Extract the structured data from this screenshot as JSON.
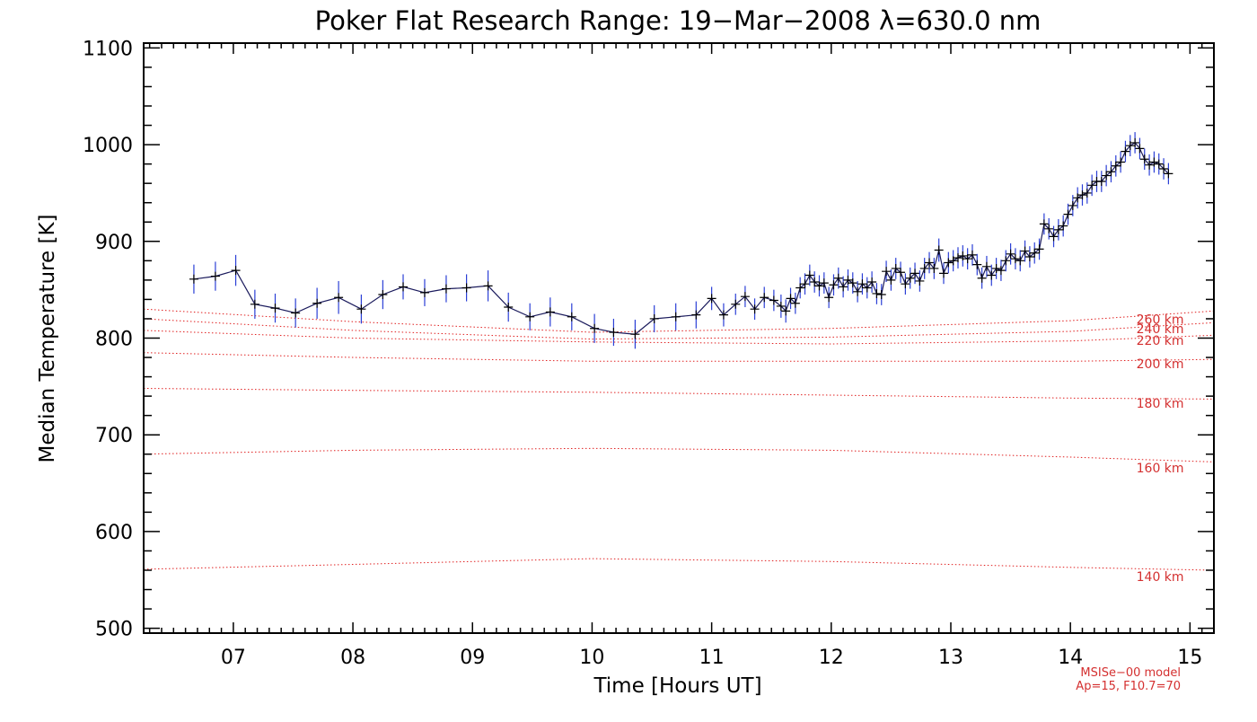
{
  "chart_data": {
    "type": "line",
    "title": "Poker Flat Research Range: 19−Mar−2008 λ=630.0 nm",
    "xlabel": "Time [Hours UT]",
    "ylabel": "Median Temperature [K]",
    "xlim": [
      6.25,
      15.2
    ],
    "ylim": [
      495,
      1105
    ],
    "x_ticks": [
      7,
      8,
      9,
      10,
      11,
      12,
      13,
      14,
      15
    ],
    "x_tick_labels": [
      "07",
      "08",
      "09",
      "10",
      "11",
      "12",
      "13",
      "14",
      "15"
    ],
    "y_ticks": [
      500,
      600,
      700,
      800,
      900,
      1000,
      1100
    ],
    "y_tick_labels": [
      "500",
      "600",
      "700",
      "800",
      "900",
      "1000",
      "1100"
    ],
    "grid": false,
    "colors": {
      "data": "#1a1a5c",
      "error_bars": "#2b3fd6",
      "model": "#e02020",
      "model_text": "#d43030"
    },
    "measurements": [
      {
        "x": 6.67,
        "y": 861,
        "err": 15
      },
      {
        "x": 6.85,
        "y": 864,
        "err": 15
      },
      {
        "x": 7.02,
        "y": 870,
        "err": 16
      },
      {
        "x": 7.18,
        "y": 835,
        "err": 15
      },
      {
        "x": 7.35,
        "y": 831,
        "err": 15
      },
      {
        "x": 7.52,
        "y": 826,
        "err": 15
      },
      {
        "x": 7.7,
        "y": 836,
        "err": 16
      },
      {
        "x": 7.88,
        "y": 842,
        "err": 17
      },
      {
        "x": 8.07,
        "y": 830,
        "err": 15
      },
      {
        "x": 8.25,
        "y": 845,
        "err": 15
      },
      {
        "x": 8.42,
        "y": 853,
        "err": 13
      },
      {
        "x": 8.6,
        "y": 847,
        "err": 14
      },
      {
        "x": 8.78,
        "y": 851,
        "err": 14
      },
      {
        "x": 8.95,
        "y": 852,
        "err": 14
      },
      {
        "x": 9.13,
        "y": 854,
        "err": 16
      },
      {
        "x": 9.3,
        "y": 832,
        "err": 15
      },
      {
        "x": 9.48,
        "y": 822,
        "err": 14
      },
      {
        "x": 9.65,
        "y": 827,
        "err": 15
      },
      {
        "x": 9.83,
        "y": 822,
        "err": 14
      },
      {
        "x": 10.02,
        "y": 810,
        "err": 15
      },
      {
        "x": 10.18,
        "y": 806,
        "err": 14
      },
      {
        "x": 10.36,
        "y": 804,
        "err": 15
      },
      {
        "x": 10.52,
        "y": 820,
        "err": 14
      },
      {
        "x": 10.7,
        "y": 822,
        "err": 14
      },
      {
        "x": 10.87,
        "y": 824,
        "err": 14
      },
      {
        "x": 11.0,
        "y": 841,
        "err": 12
      },
      {
        "x": 11.1,
        "y": 824,
        "err": 12
      },
      {
        "x": 11.2,
        "y": 835,
        "err": 11
      },
      {
        "x": 11.28,
        "y": 843,
        "err": 11
      },
      {
        "x": 11.36,
        "y": 830,
        "err": 11
      },
      {
        "x": 11.44,
        "y": 842,
        "err": 11
      },
      {
        "x": 11.52,
        "y": 839,
        "err": 11
      },
      {
        "x": 11.58,
        "y": 833,
        "err": 12
      },
      {
        "x": 11.62,
        "y": 828,
        "err": 12
      },
      {
        "x": 11.66,
        "y": 841,
        "err": 11
      },
      {
        "x": 11.7,
        "y": 836,
        "err": 11
      },
      {
        "x": 11.74,
        "y": 852,
        "err": 11
      },
      {
        "x": 11.78,
        "y": 856,
        "err": 11
      },
      {
        "x": 11.82,
        "y": 865,
        "err": 11
      },
      {
        "x": 11.86,
        "y": 858,
        "err": 11
      },
      {
        "x": 11.9,
        "y": 854,
        "err": 11
      },
      {
        "x": 11.94,
        "y": 857,
        "err": 11
      },
      {
        "x": 11.98,
        "y": 842,
        "err": 11
      },
      {
        "x": 12.02,
        "y": 855,
        "err": 11
      },
      {
        "x": 12.06,
        "y": 862,
        "err": 11
      },
      {
        "x": 12.1,
        "y": 853,
        "err": 11
      },
      {
        "x": 12.14,
        "y": 860,
        "err": 11
      },
      {
        "x": 12.18,
        "y": 857,
        "err": 11
      },
      {
        "x": 12.22,
        "y": 848,
        "err": 11
      },
      {
        "x": 12.26,
        "y": 856,
        "err": 11
      },
      {
        "x": 12.3,
        "y": 852,
        "err": 11
      },
      {
        "x": 12.34,
        "y": 858,
        "err": 11
      },
      {
        "x": 12.38,
        "y": 846,
        "err": 11
      },
      {
        "x": 12.42,
        "y": 845,
        "err": 11
      },
      {
        "x": 12.46,
        "y": 869,
        "err": 11
      },
      {
        "x": 12.5,
        "y": 860,
        "err": 11
      },
      {
        "x": 12.54,
        "y": 872,
        "err": 11
      },
      {
        "x": 12.58,
        "y": 868,
        "err": 11
      },
      {
        "x": 12.62,
        "y": 856,
        "err": 11
      },
      {
        "x": 12.66,
        "y": 862,
        "err": 11
      },
      {
        "x": 12.7,
        "y": 867,
        "err": 11
      },
      {
        "x": 12.74,
        "y": 859,
        "err": 11
      },
      {
        "x": 12.78,
        "y": 872,
        "err": 11
      },
      {
        "x": 12.82,
        "y": 878,
        "err": 11
      },
      {
        "x": 12.86,
        "y": 872,
        "err": 11
      },
      {
        "x": 12.9,
        "y": 891,
        "err": 12
      },
      {
        "x": 12.94,
        "y": 867,
        "err": 11
      },
      {
        "x": 12.98,
        "y": 878,
        "err": 11
      },
      {
        "x": 13.02,
        "y": 880,
        "err": 11
      },
      {
        "x": 13.06,
        "y": 883,
        "err": 11
      },
      {
        "x": 13.1,
        "y": 885,
        "err": 11
      },
      {
        "x": 13.14,
        "y": 882,
        "err": 11
      },
      {
        "x": 13.18,
        "y": 886,
        "err": 11
      },
      {
        "x": 13.22,
        "y": 876,
        "err": 11
      },
      {
        "x": 13.26,
        "y": 862,
        "err": 11
      },
      {
        "x": 13.3,
        "y": 874,
        "err": 11
      },
      {
        "x": 13.34,
        "y": 865,
        "err": 11
      },
      {
        "x": 13.38,
        "y": 872,
        "err": 11
      },
      {
        "x": 13.42,
        "y": 870,
        "err": 11
      },
      {
        "x": 13.46,
        "y": 880,
        "err": 11
      },
      {
        "x": 13.5,
        "y": 887,
        "err": 11
      },
      {
        "x": 13.54,
        "y": 882,
        "err": 11
      },
      {
        "x": 13.58,
        "y": 880,
        "err": 11
      },
      {
        "x": 13.62,
        "y": 890,
        "err": 11
      },
      {
        "x": 13.66,
        "y": 884,
        "err": 11
      },
      {
        "x": 13.7,
        "y": 888,
        "err": 11
      },
      {
        "x": 13.74,
        "y": 892,
        "err": 11
      },
      {
        "x": 13.78,
        "y": 918,
        "err": 11
      },
      {
        "x": 13.82,
        "y": 913,
        "err": 11
      },
      {
        "x": 13.86,
        "y": 905,
        "err": 11
      },
      {
        "x": 13.9,
        "y": 912,
        "err": 11
      },
      {
        "x": 13.94,
        "y": 916,
        "err": 11
      },
      {
        "x": 13.98,
        "y": 928,
        "err": 11
      },
      {
        "x": 14.02,
        "y": 937,
        "err": 11
      },
      {
        "x": 14.06,
        "y": 945,
        "err": 11
      },
      {
        "x": 14.1,
        "y": 948,
        "err": 11
      },
      {
        "x": 14.14,
        "y": 950,
        "err": 11
      },
      {
        "x": 14.18,
        "y": 958,
        "err": 11
      },
      {
        "x": 14.22,
        "y": 962,
        "err": 11
      },
      {
        "x": 14.26,
        "y": 962,
        "err": 11
      },
      {
        "x": 14.3,
        "y": 968,
        "err": 11
      },
      {
        "x": 14.34,
        "y": 972,
        "err": 11
      },
      {
        "x": 14.38,
        "y": 978,
        "err": 11
      },
      {
        "x": 14.42,
        "y": 982,
        "err": 11
      },
      {
        "x": 14.46,
        "y": 993,
        "err": 11
      },
      {
        "x": 14.5,
        "y": 999,
        "err": 11
      },
      {
        "x": 14.54,
        "y": 1002,
        "err": 11
      },
      {
        "x": 14.58,
        "y": 996,
        "err": 11
      },
      {
        "x": 14.62,
        "y": 985,
        "err": 11
      },
      {
        "x": 14.66,
        "y": 979,
        "err": 11
      },
      {
        "x": 14.7,
        "y": 982,
        "err": 11
      },
      {
        "x": 14.74,
        "y": 980,
        "err": 11
      },
      {
        "x": 14.78,
        "y": 975,
        "err": 11
      },
      {
        "x": 14.82,
        "y": 970,
        "err": 11
      }
    ],
    "model_series": [
      {
        "name": "140 km",
        "x": [
          6.25,
          8.0,
          10.0,
          12.0,
          14.0,
          15.2
        ],
        "y": [
          561,
          566,
          572,
          569,
          563,
          560
        ],
        "label_y": 549
      },
      {
        "name": "160 km",
        "x": [
          6.25,
          8.0,
          10.0,
          12.0,
          14.0,
          15.2
        ],
        "y": [
          680,
          684,
          686,
          684,
          677,
          672
        ],
        "label_y": 661
      },
      {
        "name": "180 km",
        "x": [
          6.25,
          8.0,
          10.0,
          12.0,
          14.0,
          15.2
        ],
        "y": [
          748,
          746,
          744,
          741,
          738,
          737
        ],
        "label_y": 728
      },
      {
        "name": "200 km",
        "x": [
          6.25,
          8.0,
          10.0,
          12.0,
          14.0,
          15.2
        ],
        "y": [
          785,
          780,
          776,
          776,
          776,
          778
        ],
        "label_y": 769
      },
      {
        "name": "220 km",
        "x": [
          6.25,
          8.0,
          10.0,
          12.0,
          14.0,
          15.2
        ],
        "y": [
          808,
          800,
          796,
          794,
          797,
          803
        ],
        "label_y": 793
      },
      {
        "name": "240 km",
        "x": [
          6.25,
          8.0,
          10.0,
          12.0,
          14.0,
          15.2
        ],
        "y": [
          820,
          808,
          799,
          801,
          807,
          816
        ],
        "label_y": 805
      },
      {
        "name": "260 km",
        "x": [
          6.25,
          8.0,
          10.0,
          12.0,
          14.0,
          15.2
        ],
        "y": [
          830,
          817,
          806,
          810,
          818,
          828
        ],
        "label_y": 815
      }
    ],
    "model_label_x": 14.75,
    "annotations": [
      "MSISe−00 model",
      "Ap=15, F10.7=70"
    ]
  }
}
